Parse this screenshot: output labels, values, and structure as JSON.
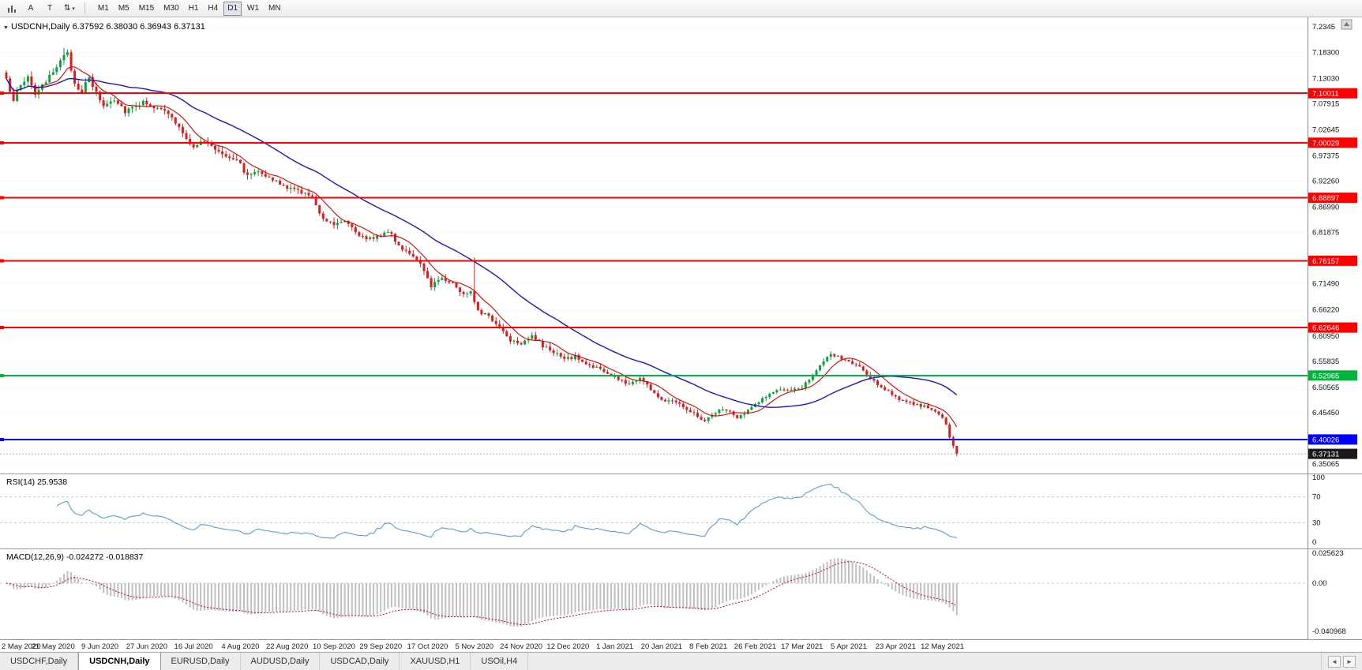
{
  "toolbar": {
    "icons": [
      {
        "name": "bar-chart-icon"
      },
      {
        "name": "cursor-tool",
        "label": "A"
      },
      {
        "name": "text-tool",
        "label": "T"
      },
      {
        "name": "drawing-tools",
        "label": "⇅",
        "caret": "▾"
      }
    ],
    "timeframes": [
      "M1",
      "M5",
      "M15",
      "M30",
      "H1",
      "H4",
      "D1",
      "W1",
      "MN"
    ],
    "active_timeframe": "D1"
  },
  "chart_data": {
    "type": "candlestick",
    "symbol": "USDCNH",
    "period": "Daily",
    "header": {
      "symbol_label": "USDCNH,Daily",
      "open": "6.37592",
      "high": "6.38030",
      "low": "6.36943",
      "close": "6.37131",
      "dropdown_icon": "▼"
    },
    "colors": {
      "up": "#0ca13a",
      "down": "#e11b1b",
      "ma_fast": "#dd0000",
      "ma_slow": "#1717cf",
      "rsi": "#53a0dc",
      "macd_hist": "#bfbfbf",
      "macd_signal": "#e00000",
      "grid": "#e9e9e9",
      "hline_red": "#ff0000",
      "hline_green": "#00b43c",
      "hline_blue": "#0000ff"
    },
    "price_axis": {
      "labels": [
        {
          "text": "7.2345",
          "value": 7.2345
        },
        {
          "text": "7.18300",
          "value": 7.183
        },
        {
          "text": "7.13030",
          "value": 7.1303
        },
        {
          "text": "7.07915",
          "value": 7.07915
        },
        {
          "text": "7.02645",
          "value": 7.02645
        },
        {
          "text": "6.97375",
          "value": 6.97375
        },
        {
          "text": "6.92260",
          "value": 6.9226
        },
        {
          "text": "6.86990",
          "value": 6.8699
        },
        {
          "text": "6.81875",
          "value": 6.81875
        },
        {
          "text": "6.76605",
          "value": 6.76605
        },
        {
          "text": "6.71490",
          "value": 6.7149
        },
        {
          "text": "6.66220",
          "value": 6.6622
        },
        {
          "text": "6.60950",
          "value": 6.6095
        },
        {
          "text": "6.55835",
          "value": 6.55835
        },
        {
          "text": "6.50565",
          "value": 6.50565
        },
        {
          "text": "6.45450",
          "value": 6.4545
        },
        {
          "text": "6.40180",
          "value": 6.4018
        },
        {
          "text": "6.35065",
          "value": 6.35065
        }
      ]
    },
    "hlines": [
      {
        "price": 7.10011,
        "text": "7.10011",
        "color": "#ff0000"
      },
      {
        "price": 7.00029,
        "text": "7.00029",
        "color": "#ff0000"
      },
      {
        "price": 6.88897,
        "text": "6.88897",
        "color": "#ff0000"
      },
      {
        "price": 6.76157,
        "text": "6.76157",
        "color": "#ff0000"
      },
      {
        "price": 6.62646,
        "text": "6.62646",
        "color": "#ff0000"
      },
      {
        "price": 6.52965,
        "text": "6.52965",
        "color": "#00b43c"
      },
      {
        "price": 6.40026,
        "text": "6.40026",
        "color": "#0000ff"
      }
    ],
    "current_price": {
      "value": 6.37131,
      "text": "6.37131",
      "badge_color": "#1a1a1a"
    },
    "x_axis": {
      "labels": [
        "2 May 2020",
        "21 May 2020",
        "9 Jun 2020",
        "27 Jun 2020",
        "16 Jul 2020",
        "4 Aug 2020",
        "22 Aug 2020",
        "10 Sep 2020",
        "29 Sep 2020",
        "17 Oct 2020",
        "5 Nov 2020",
        "24 Nov 2020",
        "12 Dec 2020",
        "1 Jan 2021",
        "20 Jan 2021",
        "8 Feb 2021",
        "26 Feb 2021",
        "17 Mar 2021",
        "5 Apr 2021",
        "23 Apr 2021",
        "12 May 2021"
      ],
      "candles_per_label": 13
    },
    "candle_count": 265,
    "price_anchors": [
      [
        0,
        7.125
      ],
      [
        2,
        7.09
      ],
      [
        4,
        7.115
      ],
      [
        6,
        7.135
      ],
      [
        8,
        7.1
      ],
      [
        11,
        7.12
      ],
      [
        13,
        7.145
      ],
      [
        15,
        7.17
      ],
      [
        17,
        7.178
      ],
      [
        19,
        7.12
      ],
      [
        21,
        7.105
      ],
      [
        23,
        7.13
      ],
      [
        25,
        7.1
      ],
      [
        27,
        7.075
      ],
      [
        30,
        7.09
      ],
      [
        33,
        7.065
      ],
      [
        36,
        7.078
      ],
      [
        39,
        7.082
      ],
      [
        42,
        7.068
      ],
      [
        45,
        7.06
      ],
      [
        48,
        7.03
      ],
      [
        50,
        7.005
      ],
      [
        52,
        6.995
      ],
      [
        55,
        7.002
      ],
      [
        58,
        6.988
      ],
      [
        61,
        6.975
      ],
      [
        64,
        6.968
      ],
      [
        67,
        6.932
      ],
      [
        70,
        6.947
      ],
      [
        73,
        6.928
      ],
      [
        76,
        6.916
      ],
      [
        79,
        6.906
      ],
      [
        82,
        6.902
      ],
      [
        85,
        6.888
      ],
      [
        88,
        6.848
      ],
      [
        91,
        6.836
      ],
      [
        94,
        6.846
      ],
      [
        97,
        6.822
      ],
      [
        100,
        6.802
      ],
      [
        103,
        6.812
      ],
      [
        106,
        6.822
      ],
      [
        109,
        6.792
      ],
      [
        112,
        6.778
      ],
      [
        115,
        6.752
      ],
      [
        118,
        6.712
      ],
      [
        121,
        6.728
      ],
      [
        124,
        6.716
      ],
      [
        127,
        6.692
      ],
      [
        129,
        6.702
      ],
      [
        131,
        6.662
      ],
      [
        134,
        6.648
      ],
      [
        137,
        6.628
      ],
      [
        140,
        6.602
      ],
      [
        143,
        6.596
      ],
      [
        146,
        6.612
      ],
      [
        149,
        6.588
      ],
      [
        152,
        6.578
      ],
      [
        155,
        6.562
      ],
      [
        158,
        6.568
      ],
      [
        161,
        6.552
      ],
      [
        164,
        6.546
      ],
      [
        167,
        6.532
      ],
      [
        170,
        6.522
      ],
      [
        173,
        6.512
      ],
      [
        176,
        6.526
      ],
      [
        179,
        6.502
      ],
      [
        182,
        6.478
      ],
      [
        185,
        6.482
      ],
      [
        188,
        6.468
      ],
      [
        191,
        6.452
      ],
      [
        194,
        6.438
      ],
      [
        197,
        6.456
      ],
      [
        200,
        6.462
      ],
      [
        203,
        6.442
      ],
      [
        206,
        6.458
      ],
      [
        209,
        6.478
      ],
      [
        212,
        6.492
      ],
      [
        215,
        6.502
      ],
      [
        218,
        6.497
      ],
      [
        221,
        6.507
      ],
      [
        224,
        6.532
      ],
      [
        227,
        6.557
      ],
      [
        229,
        6.572
      ],
      [
        231,
        6.567
      ],
      [
        234,
        6.557
      ],
      [
        237,
        6.547
      ],
      [
        240,
        6.522
      ],
      [
        243,
        6.507
      ],
      [
        246,
        6.492
      ],
      [
        249,
        6.477
      ],
      [
        252,
        6.472
      ],
      [
        255,
        6.467
      ],
      [
        258,
        6.455
      ],
      [
        260,
        6.445
      ],
      [
        261,
        6.432
      ],
      [
        262,
        6.402
      ],
      [
        263,
        6.386
      ],
      [
        264,
        6.37131
      ]
    ],
    "special_wicks": [
      [
        16,
        7.192
      ],
      [
        130,
        6.768
      ]
    ],
    "moving_averages": [
      {
        "name": "fast-ma",
        "period": 8,
        "color_key": "ma_fast"
      },
      {
        "name": "slow-ma",
        "period": 34,
        "color_key": "ma_slow"
      }
    ],
    "rsi": {
      "name": "RSI(14)",
      "value": "25.9538",
      "period": 14,
      "levels": [
        "100",
        "70",
        "30",
        "0"
      ],
      "level_values": [
        100,
        70,
        30,
        0
      ],
      "dashed_levels": [
        70,
        30
      ]
    },
    "macd": {
      "name": "MACD(12,26,9)",
      "values": "-0.024272 -0.018837",
      "fast": 12,
      "slow": 26,
      "signal": 9,
      "axis": [
        {
          "text": "0.025623",
          "value": 0.025623
        },
        {
          "text": "0.00",
          "value": 0
        },
        {
          "text": "-0.040968",
          "value": -0.040968
        }
      ]
    }
  },
  "tabs": {
    "items": [
      {
        "label": "USDCHF,Daily",
        "active": false
      },
      {
        "label": "USDCNH,Daily",
        "active": true
      },
      {
        "label": "EURUSD,Daily",
        "active": false
      },
      {
        "label": "AUDUSD,Daily",
        "active": false
      },
      {
        "label": "USDCAD,Daily",
        "active": false
      },
      {
        "label": "XAUUSD,H1",
        "active": false
      },
      {
        "label": "USOil,H4",
        "active": false
      }
    ],
    "scroll_left": "◄",
    "scroll_right": "►"
  }
}
